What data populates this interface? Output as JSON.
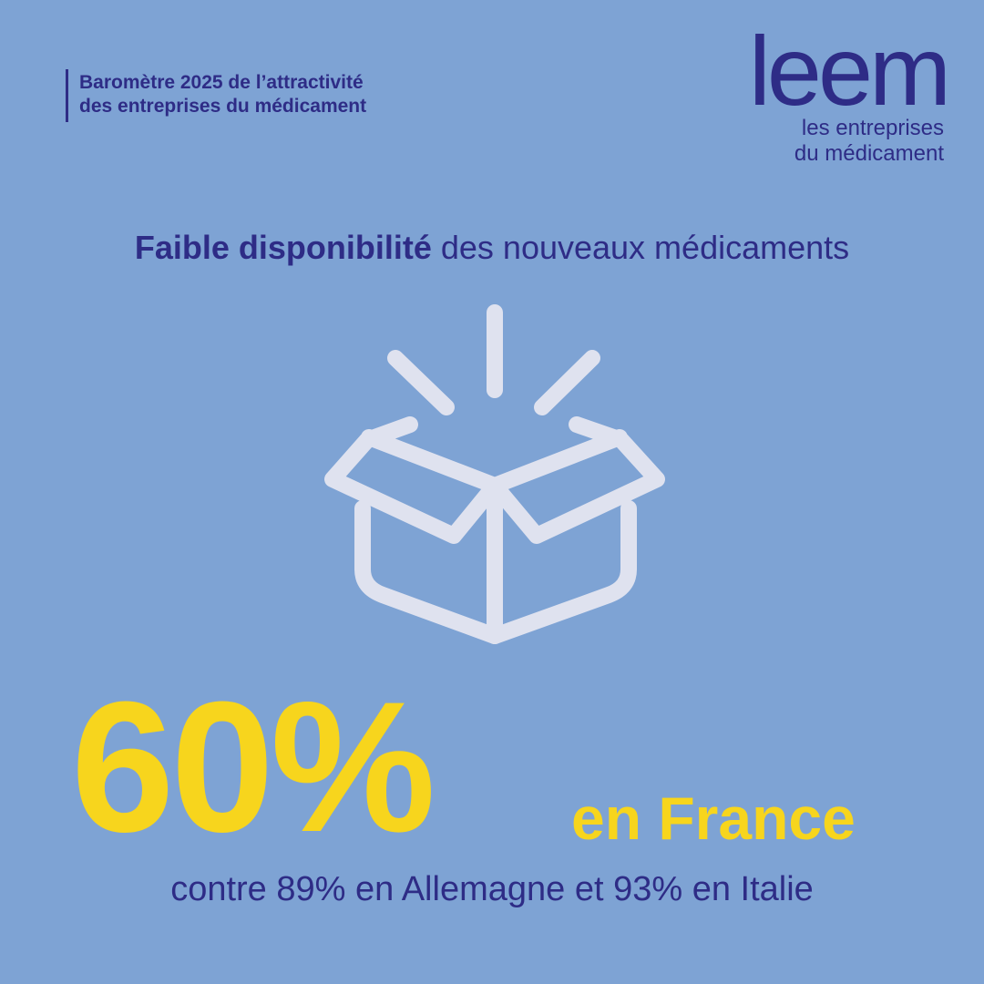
{
  "colors": {
    "background": "#7ea3d4",
    "navy": "#2e2c86",
    "yellow": "#f7d51d",
    "icon_stroke": "#dfe2ef"
  },
  "header": {
    "line1": "Baromètre 2025 de l’attractivité",
    "line2": "des entreprises du médicament"
  },
  "logo": {
    "word": "leem",
    "tagline_line1": "les entreprises",
    "tagline_line2": "du médicament"
  },
  "headline": {
    "bold": "Faible disponibilité",
    "rest": " des nouveaux médicaments"
  },
  "icon": {
    "name": "open-box-icon"
  },
  "stat": {
    "value": "60%",
    "label": "en France",
    "comparison": "contre 89% en Allemagne et 93% en Italie"
  }
}
